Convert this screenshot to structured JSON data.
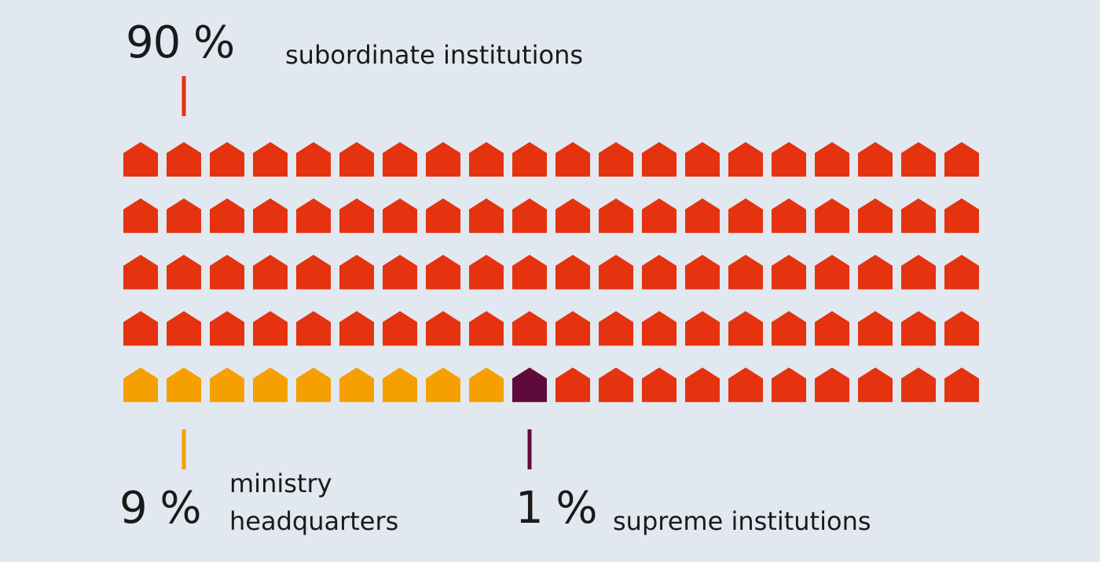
{
  "chart_data": {
    "type": "waffle",
    "categories": [
      "ministry headquarters",
      "supreme institutions",
      "subordinate institutions"
    ],
    "values": [
      9,
      1,
      90
    ],
    "value_labels": [
      "9 %",
      "1 %",
      "90 %"
    ],
    "colors": [
      "#f5a000",
      "#5e0b3b",
      "#e5320f"
    ]
  }
}
